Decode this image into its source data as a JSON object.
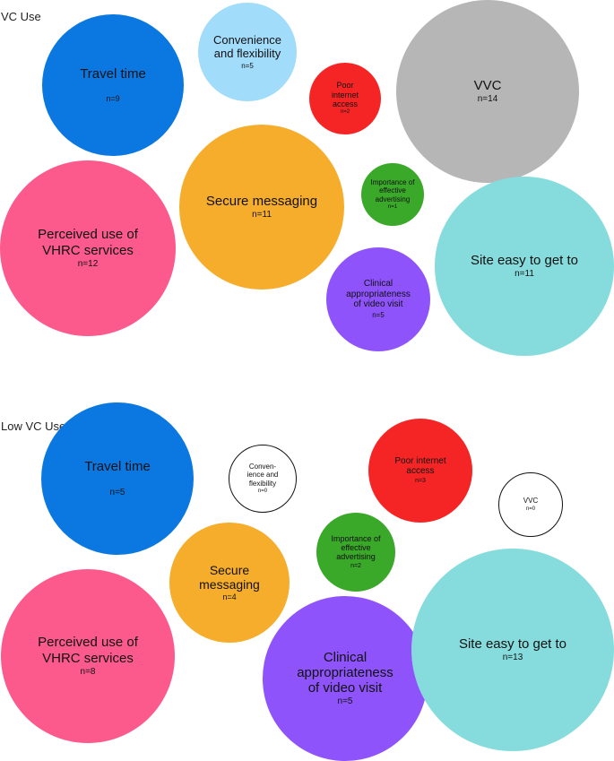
{
  "panels": [
    {
      "title": "VC Use",
      "bubbles": [
        {
          "id": "travel-time",
          "label": "Travel time",
          "count": "n=9",
          "color": "#0a78e0",
          "text_color": "#111111"
        },
        {
          "id": "convenience",
          "label": "Convenience\nand flexibility",
          "count": "n=5",
          "color": "#a2dcfb",
          "text_color": "#111111"
        },
        {
          "id": "poor-internet",
          "label": "Poor\ninternet\naccess",
          "count": "n=2",
          "color": "#f52525",
          "text_color": "#111111"
        },
        {
          "id": "vvc",
          "label": "VVC",
          "count": "n=14",
          "color": "#b6b6b6",
          "text_color": "#111111"
        },
        {
          "id": "perceived-use",
          "label": "Perceived use of\nVHRC services",
          "count": "n=12",
          "color": "#fc5a8d",
          "text_color": "#111111"
        },
        {
          "id": "secure-messaging",
          "label": "Secure messaging",
          "count": "n=11",
          "color": "#f5ad2b",
          "text_color": "#111111"
        },
        {
          "id": "advertising",
          "label": "Importance of\neffective\nadvertising",
          "count": "n=1",
          "color": "#3aa828",
          "text_color": "#111111"
        },
        {
          "id": "site-easy",
          "label": "Site easy to get to",
          "count": "n=11",
          "color": "#86dcdc",
          "text_color": "#111111"
        },
        {
          "id": "clinical",
          "label": "Clinical\nappropriateness\nof video visit",
          "count": "n=5",
          "color": "#8e53fa",
          "text_color": "#111111"
        }
      ]
    },
    {
      "title": "Low VC Use",
      "bubbles": [
        {
          "id": "travel-time",
          "label": "Travel time",
          "count": "n=5",
          "color": "#0a78e0",
          "text_color": "#111111"
        },
        {
          "id": "convenience",
          "label": "Conven-\nience and\nflexibility",
          "count": "n=0",
          "color": "#ffffff",
          "text_color": "#111111",
          "border": "#111111"
        },
        {
          "id": "poor-internet",
          "label": "Poor internet\naccess",
          "count": "n=3",
          "color": "#f52525",
          "text_color": "#111111"
        },
        {
          "id": "vvc",
          "label": "VVC",
          "count": "n=0",
          "color": "#ffffff",
          "text_color": "#111111",
          "border": "#111111"
        },
        {
          "id": "secure-messaging",
          "label": "Secure\nmessaging",
          "count": "n=4",
          "color": "#f5ad2b",
          "text_color": "#111111"
        },
        {
          "id": "advertising",
          "label": "Importance of\neffective\nadvertising",
          "count": "n=2",
          "color": "#3aa828",
          "text_color": "#111111"
        },
        {
          "id": "perceived-use",
          "label": "Perceived use of\nVHRC services",
          "count": "n=8",
          "color": "#fc5a8d",
          "text_color": "#111111"
        },
        {
          "id": "clinical",
          "label": "Clinical\nappropriateness\nof video visit",
          "count": "n=5",
          "color": "#8e53fa",
          "text_color": "#111111"
        },
        {
          "id": "site-easy",
          "label": "Site easy to get to",
          "count": "n=13",
          "color": "#86dcdc",
          "text_color": "#111111"
        }
      ]
    }
  ]
}
